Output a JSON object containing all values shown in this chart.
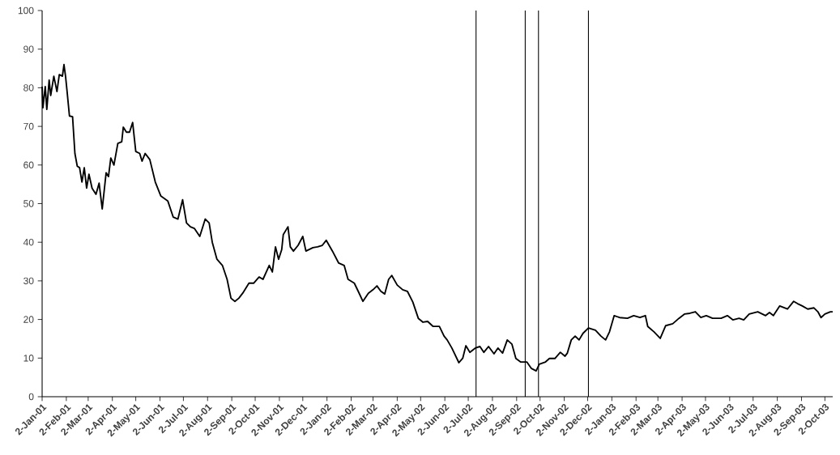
{
  "chart_data": {
    "type": "line",
    "color": "#000000",
    "marker": "none",
    "line_style": "solid",
    "x": [
      "2001-01-02",
      "2001-01-03",
      "2001-01-06",
      "2001-01-08",
      "2001-01-11",
      "2001-01-13",
      "2001-01-17",
      "2001-01-21",
      "2001-01-24",
      "2001-01-28",
      "2001-01-30",
      "2001-02-01",
      "2001-02-03",
      "2001-02-06",
      "2001-02-10",
      "2001-02-13",
      "2001-02-16",
      "2001-02-19",
      "2001-02-22",
      "2001-02-25",
      "2001-02-28",
      "2001-03-03",
      "2001-03-07",
      "2001-03-12",
      "2001-03-16",
      "2001-03-20",
      "2001-03-25",
      "2001-03-28",
      "2001-03-31",
      "2001-04-04",
      "2001-04-09",
      "2001-04-14",
      "2001-04-16",
      "2001-04-20",
      "2001-04-24",
      "2001-04-28",
      "2001-05-02",
      "2001-05-07",
      "2001-05-10",
      "2001-05-14",
      "2001-05-20",
      "2001-05-27",
      "2001-06-03",
      "2001-06-12",
      "2001-06-19",
      "2001-06-25",
      "2001-07-01",
      "2001-07-06",
      "2001-07-11",
      "2001-07-16",
      "2001-07-23",
      "2001-07-30",
      "2001-08-04",
      "2001-08-08",
      "2001-08-14",
      "2001-08-21",
      "2001-08-27",
      "2001-09-01",
      "2001-09-06",
      "2001-09-11",
      "2001-09-16",
      "2001-09-24",
      "2001-09-30",
      "2001-10-07",
      "2001-10-12",
      "2001-10-20",
      "2001-10-24",
      "2001-10-28",
      "2001-11-01",
      "2001-11-05",
      "2001-11-07",
      "2001-11-13",
      "2001-11-16",
      "2001-11-20",
      "2001-11-26",
      "2001-12-02",
      "2001-12-06",
      "2001-12-15",
      "2001-12-21",
      "2001-12-27",
      "2002-01-01",
      "2002-01-09",
      "2002-01-17",
      "2002-01-24",
      "2002-01-29",
      "2002-02-06",
      "2002-02-11",
      "2002-02-17",
      "2002-02-24",
      "2002-03-02",
      "2002-03-07",
      "2002-03-12",
      "2002-03-17",
      "2002-03-22",
      "2002-03-26",
      "2002-04-02",
      "2002-04-09",
      "2002-04-15",
      "2002-04-22",
      "2002-04-29",
      "2002-05-05",
      "2002-05-11",
      "2002-05-18",
      "2002-05-26",
      "2002-06-01",
      "2002-06-05",
      "2002-06-11",
      "2002-06-20",
      "2002-06-25",
      "2002-06-29",
      "2002-07-04",
      "2002-07-11",
      "2002-07-17",
      "2002-07-22",
      "2002-07-28",
      "2002-08-04",
      "2002-08-09",
      "2002-08-15",
      "2002-08-21",
      "2002-08-27",
      "2002-09-01",
      "2002-09-07",
      "2002-09-15",
      "2002-09-21",
      "2002-09-27",
      "2002-10-01",
      "2002-10-09",
      "2002-10-14",
      "2002-10-21",
      "2002-10-28",
      "2002-11-03",
      "2002-11-06",
      "2002-11-11",
      "2002-11-16",
      "2002-11-21",
      "2002-11-26",
      "2002-12-03",
      "2002-12-12",
      "2002-12-19",
      "2002-12-25",
      "2002-12-30",
      "2003-01-05",
      "2003-01-12",
      "2003-01-22",
      "2003-01-30",
      "2003-02-07",
      "2003-02-14",
      "2003-02-17",
      "2003-02-25",
      "2003-03-05",
      "2003-03-12",
      "2003-03-21",
      "2003-03-29",
      "2003-04-05",
      "2003-04-12",
      "2003-04-19",
      "2003-04-26",
      "2003-05-03",
      "2003-05-11",
      "2003-05-22",
      "2003-05-30",
      "2003-06-06",
      "2003-06-14",
      "2003-06-20",
      "2003-06-27",
      "2003-07-08",
      "2003-07-18",
      "2003-07-23",
      "2003-07-28",
      "2003-08-05",
      "2003-08-15",
      "2003-08-23",
      "2003-08-28",
      "2003-09-03",
      "2003-09-10",
      "2003-09-18",
      "2003-09-23",
      "2003-09-27",
      "2003-10-02",
      "2003-10-09",
      "2003-10-12"
    ],
    "values": [
      80.3,
      74.8,
      80.3,
      74.4,
      82,
      78,
      83,
      79,
      83.4,
      83,
      86,
      83,
      79,
      72.7,
      72.5,
      63,
      59.7,
      59.3,
      55.6,
      59.3,
      54,
      57.6,
      54,
      52.4,
      55.3,
      48.6,
      58,
      57,
      61.8,
      60,
      65.6,
      66,
      69.8,
      68.5,
      68.5,
      71,
      63.5,
      63,
      61,
      63,
      61.4,
      55.6,
      52,
      50.7,
      46.5,
      46,
      51,
      45,
      44,
      43.6,
      41.5,
      46,
      45,
      40,
      35.6,
      34,
      30.4,
      25.5,
      24.7,
      25.5,
      26.8,
      29.4,
      29.4,
      31,
      30.4,
      34,
      32.3,
      38.8,
      35.6,
      38.1,
      42,
      44,
      38.8,
      37.7,
      39.2,
      41.5,
      37.7,
      38.6,
      38.8,
      39.2,
      40.5,
      37.7,
      34.6,
      34,
      30.4,
      29.4,
      27.3,
      24.7,
      26.8,
      27.7,
      28.7,
      27.3,
      26.6,
      30.4,
      31.4,
      28.9,
      27.7,
      27.3,
      24.5,
      20.3,
      19.3,
      19.5,
      18.2,
      18.2,
      15.7,
      14.7,
      12.6,
      8.8,
      10,
      13.2,
      11.5,
      12.6,
      13,
      11.5,
      13,
      11.1,
      12.6,
      11.3,
      14.7,
      13.6,
      9.9,
      9,
      9,
      7.3,
      6.7,
      8.4,
      9,
      9.9,
      9.9,
      11.5,
      10.5,
      11.3,
      14.7,
      15.7,
      14.7,
      16.4,
      17.8,
      17.2,
      15.7,
      14.7,
      16.8,
      21,
      20.5,
      20.3,
      21,
      20.5,
      21,
      18.2,
      16.8,
      15.1,
      18.4,
      18.9,
      20.3,
      21.4,
      21.6,
      22,
      20.5,
      21,
      20.3,
      20.3,
      21,
      19.9,
      20.3,
      19.9,
      21.4,
      22,
      21,
      21.8,
      21,
      23.5,
      22.7,
      24.7,
      24.1,
      23.5,
      22.7,
      23,
      22,
      20.5,
      21.4,
      22,
      22
    ],
    "xlim": [
      "2001-01-02",
      "2003-10-12"
    ],
    "ylim": [
      0,
      100
    ],
    "yticks": [
      0,
      10,
      20,
      30,
      40,
      50,
      60,
      70,
      80,
      90,
      100
    ],
    "xticks": [
      {
        "value": "2001-01-02",
        "label": "2-Jan-01"
      },
      {
        "value": "2001-02-02",
        "label": "2-Feb-01"
      },
      {
        "value": "2001-03-02",
        "label": "2-Mar-01"
      },
      {
        "value": "2001-04-02",
        "label": "2-Apr-01"
      },
      {
        "value": "2001-05-02",
        "label": "2-May-01"
      },
      {
        "value": "2001-06-02",
        "label": "2-Jun-01"
      },
      {
        "value": "2001-07-02",
        "label": "2-Jul-01"
      },
      {
        "value": "2001-08-02",
        "label": "2-Aug-01"
      },
      {
        "value": "2001-09-02",
        "label": "2-Sep-01"
      },
      {
        "value": "2001-10-02",
        "label": "2-Oct-01"
      },
      {
        "value": "2001-11-02",
        "label": "2-Nov-01"
      },
      {
        "value": "2001-12-02",
        "label": "2-Dec-01"
      },
      {
        "value": "2002-01-02",
        "label": "2-Jan-02"
      },
      {
        "value": "2002-02-02",
        "label": "2-Feb-02"
      },
      {
        "value": "2002-03-02",
        "label": "2-Mar-02"
      },
      {
        "value": "2002-04-02",
        "label": "2-Apr-02"
      },
      {
        "value": "2002-05-02",
        "label": "2-May-02"
      },
      {
        "value": "2002-06-02",
        "label": "2-Jun-02"
      },
      {
        "value": "2002-07-02",
        "label": "2-Jul-02"
      },
      {
        "value": "2002-08-02",
        "label": "2-Aug-02"
      },
      {
        "value": "2002-09-02",
        "label": "2-Sep-02"
      },
      {
        "value": "2002-10-02",
        "label": "2-Oct-02"
      },
      {
        "value": "2002-11-02",
        "label": "2-Nov-02"
      },
      {
        "value": "2002-12-02",
        "label": "2-Dec-02"
      },
      {
        "value": "2003-01-02",
        "label": "2-Jan-03"
      },
      {
        "value": "2003-02-02",
        "label": "2-Feb-03"
      },
      {
        "value": "2003-03-02",
        "label": "2-Mar-03"
      },
      {
        "value": "2003-04-02",
        "label": "2-Apr-03"
      },
      {
        "value": "2003-05-02",
        "label": "2-May-03"
      },
      {
        "value": "2003-06-02",
        "label": "2-Jun-03"
      },
      {
        "value": "2003-07-02",
        "label": "2-Jul-03"
      },
      {
        "value": "2003-08-02",
        "label": "2-Aug-03"
      },
      {
        "value": "2003-09-02",
        "label": "2-Sep-03"
      },
      {
        "value": "2003-10-02",
        "label": "2-Oct-03"
      }
    ],
    "ref_lines": [
      {
        "axis": "x",
        "value": "2002-07-12",
        "color": "#000000"
      },
      {
        "axis": "x",
        "value": "2002-09-13",
        "color": "#000000"
      },
      {
        "axis": "x",
        "value": "2002-09-30",
        "color": "#000000"
      },
      {
        "axis": "x",
        "value": "2002-12-03",
        "color": "#000000"
      }
    ]
  }
}
